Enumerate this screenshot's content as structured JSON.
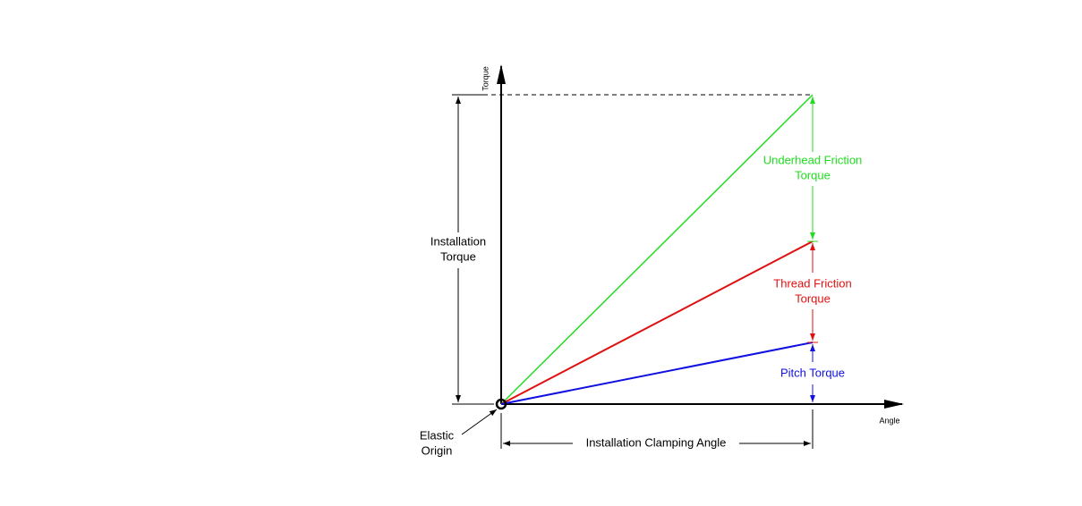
{
  "axes": {
    "y_label": "Torque",
    "x_label": "Angle"
  },
  "dimensions": {
    "installation_torque": [
      "Installation",
      "Torque"
    ],
    "clamping_angle": "Installation Clamping Angle"
  },
  "components": {
    "underhead": [
      "Underhead Friction",
      "Torque"
    ],
    "thread": [
      "Thread Friction",
      "Torque"
    ],
    "pitch": "Pitch Torque"
  },
  "origin": [
    "Elastic",
    "Origin"
  ]
}
